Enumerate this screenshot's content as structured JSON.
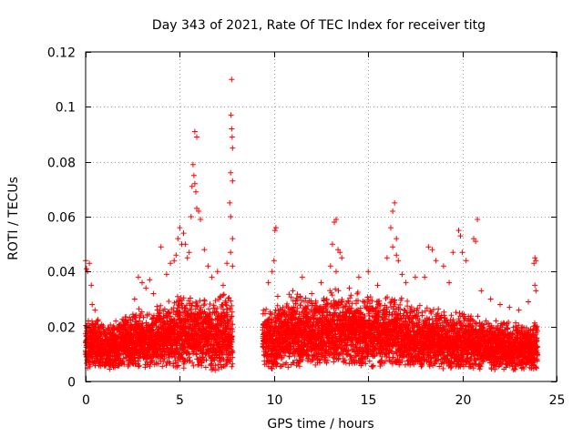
{
  "chart_data": {
    "type": "scatter",
    "title": "Day 343 of 2021, Rate Of TEC Index for receiver titg",
    "xlabel": "GPS time / hours",
    "ylabel": "ROTI / TECUs",
    "xlim": [
      0,
      25
    ],
    "ylim": [
      0,
      0.12
    ],
    "xticks": [
      0,
      5,
      10,
      15,
      20,
      25
    ],
    "xtick_labels": [
      "0",
      "5",
      "10",
      "15",
      "20",
      "25"
    ],
    "yticks": [
      0,
      0.02,
      0.04,
      0.06,
      0.08,
      0.1,
      0.12
    ],
    "ytick_labels": [
      "0",
      "0.02",
      "0.04",
      "0.06",
      "0.08",
      "0.1",
      "0.12"
    ],
    "grid": true,
    "marker": "+",
    "color": "#ff0000",
    "series": [
      {
        "name": "ROTI",
        "data_gap_hours": [
          7.8,
          9.4
        ],
        "points": [
          [
            0.0,
            0.044
          ],
          [
            0.05,
            0.041
          ],
          [
            0.1,
            0.04
          ],
          [
            0.2,
            0.043
          ],
          [
            0.3,
            0.035
          ],
          [
            0.35,
            0.028
          ],
          [
            0.5,
            0.026
          ],
          [
            0.6,
            0.022
          ],
          [
            1.2,
            0.019
          ],
          [
            1.6,
            0.022
          ],
          [
            2.1,
            0.022
          ],
          [
            2.6,
            0.03
          ],
          [
            2.8,
            0.038
          ],
          [
            3.0,
            0.036
          ],
          [
            3.2,
            0.034
          ],
          [
            3.4,
            0.037
          ],
          [
            3.6,
            0.032
          ],
          [
            3.8,
            0.026
          ],
          [
            4.0,
            0.049
          ],
          [
            4.3,
            0.039
          ],
          [
            4.5,
            0.043
          ],
          [
            4.7,
            0.044
          ],
          [
            4.8,
            0.046
          ],
          [
            4.9,
            0.052
          ],
          [
            5.0,
            0.056
          ],
          [
            5.1,
            0.05
          ],
          [
            5.2,
            0.054
          ],
          [
            5.3,
            0.05
          ],
          [
            5.4,
            0.045
          ],
          [
            5.5,
            0.047
          ],
          [
            5.6,
            0.06
          ],
          [
            5.65,
            0.071
          ],
          [
            5.7,
            0.079
          ],
          [
            5.75,
            0.075
          ],
          [
            5.8,
            0.072
          ],
          [
            5.85,
            0.069
          ],
          [
            5.8,
            0.091
          ],
          [
            5.9,
            0.089
          ],
          [
            5.9,
            0.063
          ],
          [
            6.0,
            0.062
          ],
          [
            6.1,
            0.059
          ],
          [
            6.3,
            0.048
          ],
          [
            6.5,
            0.042
          ],
          [
            6.7,
            0.038
          ],
          [
            7.0,
            0.04
          ],
          [
            7.3,
            0.035
          ],
          [
            7.5,
            0.043
          ],
          [
            7.65,
            0.065
          ],
          [
            7.7,
            0.076
          ],
          [
            7.72,
            0.097
          ],
          [
            7.75,
            0.092
          ],
          [
            7.78,
            0.089
          ],
          [
            7.8,
            0.085
          ],
          [
            7.75,
            0.11
          ],
          [
            7.8,
            0.073
          ],
          [
            7.7,
            0.06
          ],
          [
            7.8,
            0.052
          ],
          [
            7.7,
            0.047
          ],
          [
            7.8,
            0.042
          ],
          [
            9.7,
            0.036
          ],
          [
            9.9,
            0.04
          ],
          [
            10.0,
            0.044
          ],
          [
            10.05,
            0.055
          ],
          [
            10.1,
            0.056
          ],
          [
            10.2,
            0.031
          ],
          [
            10.5,
            0.025
          ],
          [
            11.0,
            0.033
          ],
          [
            11.5,
            0.038
          ],
          [
            12.0,
            0.032
          ],
          [
            12.5,
            0.036
          ],
          [
            13.0,
            0.042
          ],
          [
            13.1,
            0.05
          ],
          [
            13.2,
            0.058
          ],
          [
            13.3,
            0.059
          ],
          [
            13.4,
            0.048
          ],
          [
            13.5,
            0.047
          ],
          [
            13.6,
            0.045
          ],
          [
            13.3,
            0.04
          ],
          [
            14.0,
            0.034
          ],
          [
            14.5,
            0.038
          ],
          [
            15.0,
            0.04
          ],
          [
            15.5,
            0.035
          ],
          [
            16.0,
            0.045
          ],
          [
            16.2,
            0.056
          ],
          [
            16.3,
            0.062
          ],
          [
            16.4,
            0.065
          ],
          [
            16.5,
            0.052
          ],
          [
            16.3,
            0.049
          ],
          [
            16.5,
            0.046
          ],
          [
            16.6,
            0.044
          ],
          [
            16.8,
            0.039
          ],
          [
            17.0,
            0.036
          ],
          [
            17.5,
            0.038
          ],
          [
            18.0,
            0.038
          ],
          [
            18.2,
            0.049
          ],
          [
            18.4,
            0.048
          ],
          [
            18.6,
            0.044
          ],
          [
            19.0,
            0.042
          ],
          [
            19.3,
            0.036
          ],
          [
            19.5,
            0.047
          ],
          [
            19.8,
            0.055
          ],
          [
            19.9,
            0.053
          ],
          [
            20.0,
            0.047
          ],
          [
            20.2,
            0.044
          ],
          [
            20.6,
            0.052
          ],
          [
            20.7,
            0.051
          ],
          [
            20.8,
            0.059
          ],
          [
            21.0,
            0.033
          ],
          [
            21.5,
            0.03
          ],
          [
            22.0,
            0.028
          ],
          [
            22.5,
            0.027
          ],
          [
            23.0,
            0.026
          ],
          [
            23.5,
            0.029
          ],
          [
            23.8,
            0.043
          ],
          [
            23.85,
            0.045
          ],
          [
            23.9,
            0.044
          ],
          [
            23.85,
            0.035
          ],
          [
            23.9,
            0.033
          ]
        ],
        "band": [
          [
            0.0,
            0.0045,
            0.025
          ],
          [
            0.5,
            0.0045,
            0.023
          ],
          [
            1.0,
            0.004,
            0.022
          ],
          [
            1.5,
            0.004,
            0.023
          ],
          [
            2.0,
            0.005,
            0.024
          ],
          [
            2.5,
            0.005,
            0.026
          ],
          [
            3.0,
            0.005,
            0.027
          ],
          [
            3.5,
            0.005,
            0.028
          ],
          [
            4.0,
            0.005,
            0.029
          ],
          [
            4.5,
            0.005,
            0.03
          ],
          [
            5.0,
            0.004,
            0.033
          ],
          [
            5.5,
            0.004,
            0.034
          ],
          [
            6.0,
            0.004,
            0.032
          ],
          [
            6.5,
            0.004,
            0.031
          ],
          [
            7.0,
            0.004,
            0.033
          ],
          [
            7.5,
            0.004,
            0.033
          ],
          [
            7.8,
            0.004,
            0.03
          ],
          [
            9.4,
            0.006,
            0.028
          ],
          [
            10.0,
            0.004,
            0.03
          ],
          [
            10.5,
            0.005,
            0.032
          ],
          [
            11.0,
            0.005,
            0.033
          ],
          [
            11.5,
            0.005,
            0.033
          ],
          [
            12.0,
            0.005,
            0.032
          ],
          [
            12.5,
            0.005,
            0.032
          ],
          [
            13.0,
            0.005,
            0.034
          ],
          [
            13.5,
            0.005,
            0.034
          ],
          [
            14.0,
            0.005,
            0.032
          ],
          [
            14.5,
            0.005,
            0.033
          ],
          [
            15.0,
            0.005,
            0.032
          ],
          [
            15.5,
            0.005,
            0.031
          ],
          [
            16.0,
            0.005,
            0.032
          ],
          [
            16.5,
            0.005,
            0.031
          ],
          [
            17.0,
            0.005,
            0.03
          ],
          [
            17.5,
            0.005,
            0.03
          ],
          [
            18.0,
            0.005,
            0.028
          ],
          [
            18.5,
            0.005,
            0.027
          ],
          [
            19.0,
            0.004,
            0.027
          ],
          [
            19.5,
            0.004,
            0.026
          ],
          [
            20.0,
            0.004,
            0.026
          ],
          [
            20.5,
            0.004,
            0.025
          ],
          [
            21.0,
            0.004,
            0.024
          ],
          [
            21.5,
            0.004,
            0.023
          ],
          [
            22.0,
            0.004,
            0.023
          ],
          [
            22.5,
            0.004,
            0.022
          ],
          [
            23.0,
            0.004,
            0.022
          ],
          [
            23.5,
            0.004,
            0.022
          ],
          [
            24.0,
            0.004,
            0.022
          ]
        ]
      }
    ]
  }
}
